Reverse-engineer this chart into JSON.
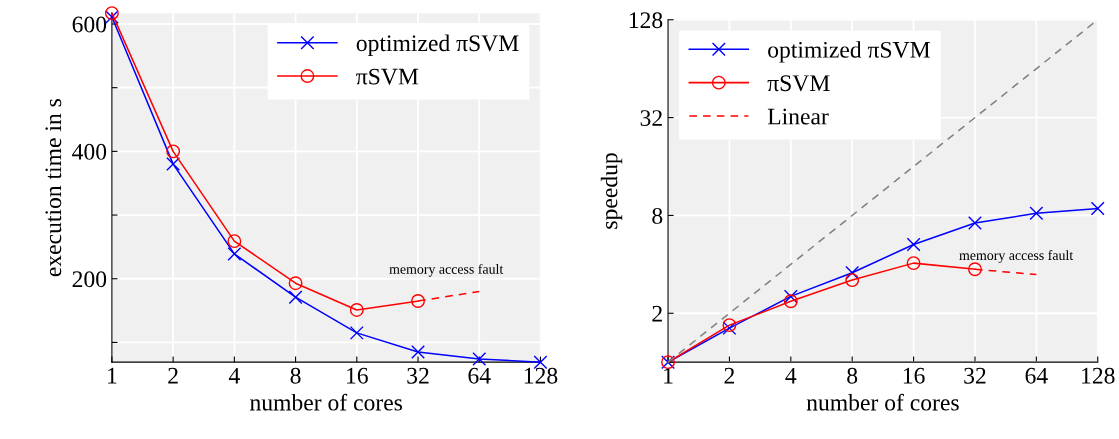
{
  "chart_data": [
    {
      "type": "line",
      "xlabel": "number of cores",
      "ylabel": "execution time in s",
      "log": "x",
      "xlim": [
        1,
        128
      ],
      "xticks": [
        1,
        2,
        4,
        8,
        16,
        32,
        64,
        128
      ],
      "ylim": [
        69,
        617
      ],
      "yticks": [
        {
          "value": 100,
          "label": null
        },
        200,
        {
          "value": 300,
          "label": null
        },
        400,
        {
          "value": 500,
          "label": null
        },
        600
      ],
      "grid": true,
      "legend": "top right",
      "series": [
        {
          "name": "optimized πSVM",
          "color": "#0000ff",
          "marker": "cross",
          "line_style": "solid",
          "x": [
            1,
            2,
            4,
            8,
            16,
            32,
            64,
            128
          ],
          "values": [
            611,
            380,
            239,
            171,
            115,
            85,
            74,
            69
          ]
        },
        {
          "name": "πSVM",
          "color": "#ff0000",
          "marker": "circle",
          "line_style": "solid",
          "x": [
            1,
            2,
            4,
            8,
            16,
            32
          ],
          "values": [
            617,
            400,
            259,
            193,
            151,
            165
          ]
        },
        {
          "color": "#ff0000",
          "marker": "none",
          "line_style": "dashed",
          "x": [
            32,
            64
          ],
          "values": [
            165,
            180
          ]
        }
      ],
      "annotations": [
        "memory access fault"
      ]
    },
    {
      "type": "line",
      "xlabel": "number of cores",
      "ylabel": "speedup",
      "log": "xy",
      "xlim": [
        1,
        128
      ],
      "xticks": [
        1,
        2,
        4,
        8,
        16,
        32,
        64,
        128
      ],
      "ylim": [
        1,
        128
      ],
      "yticks": [
        {
          "value": 1,
          "label": null
        },
        2,
        8,
        32,
        128
      ],
      "grid": true,
      "legend": "top left",
      "series": [
        {
          "name": "optimized πSVM",
          "color": "#0000ff",
          "marker": "cross",
          "line_style": "solid",
          "x": [
            1,
            2,
            4,
            8,
            16,
            32,
            64,
            128
          ],
          "values": [
            1,
            1.62,
            2.54,
            3.55,
            5.3,
            7.18,
            8.24,
            8.83
          ]
        },
        {
          "name": "πSVM",
          "color": "#ff0000",
          "marker": "circle",
          "line_style": "solid",
          "x": [
            1,
            2,
            4,
            8,
            16,
            32
          ],
          "values": [
            1,
            1.69,
            2.37,
            3.2,
            4.07,
            3.73
          ]
        },
        {
          "name": "Linear",
          "color": "#ff0000",
          "marker": "none",
          "line_style": "dashed",
          "x": [
            32,
            64
          ],
          "values": [
            3.73,
            3.46
          ]
        },
        {
          "color": "#808080",
          "marker": "none",
          "line_style": "dashed",
          "x": [
            1,
            128
          ],
          "values": [
            1,
            128
          ]
        }
      ],
      "annotations": [
        "memory access fault"
      ]
    }
  ]
}
